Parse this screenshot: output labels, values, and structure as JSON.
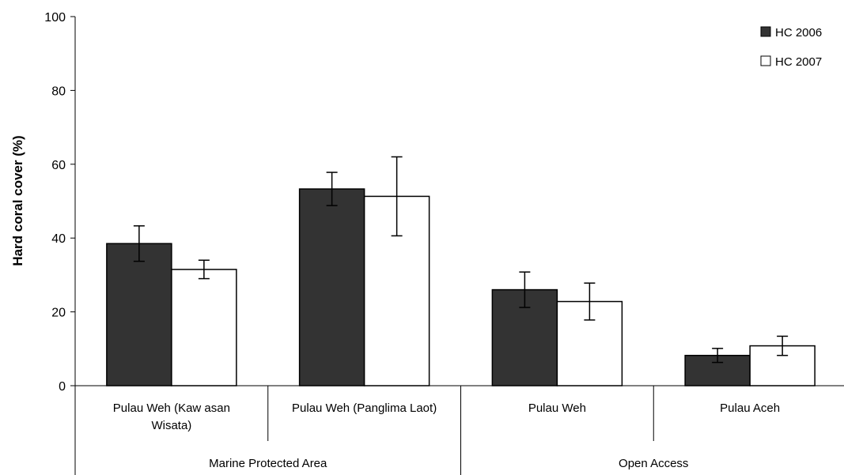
{
  "chart_data": {
    "type": "bar",
    "ylabel": "Hard coral cover (%)",
    "ylim": [
      0,
      100
    ],
    "yticks": [
      0,
      20,
      40,
      60,
      80,
      100
    ],
    "categories": [
      [
        "Pulau Weh (Kaw asan",
        "Wisata)"
      ],
      [
        "Pulau Weh (Panglima Laot)"
      ],
      [
        "Pulau Weh"
      ],
      [
        "Pulau Aceh"
      ]
    ],
    "groups": [
      {
        "label": "Marine Protected Area",
        "span": [
          0,
          1
        ]
      },
      {
        "label": "Open Access",
        "span": [
          2,
          3
        ]
      }
    ],
    "series": [
      {
        "name": "HC 2006",
        "color": "#333333",
        "values": [
          38.5,
          53.3,
          26.0,
          8.2
        ],
        "errors": [
          4.8,
          4.5,
          4.8,
          1.9
        ]
      },
      {
        "name": "HC 2007",
        "color": "#ffffff",
        "values": [
          31.5,
          51.3,
          22.8,
          10.8
        ],
        "errors": [
          2.5,
          10.7,
          5.0,
          2.6
        ]
      }
    ],
    "legend_position": "top-right",
    "grid": false
  }
}
